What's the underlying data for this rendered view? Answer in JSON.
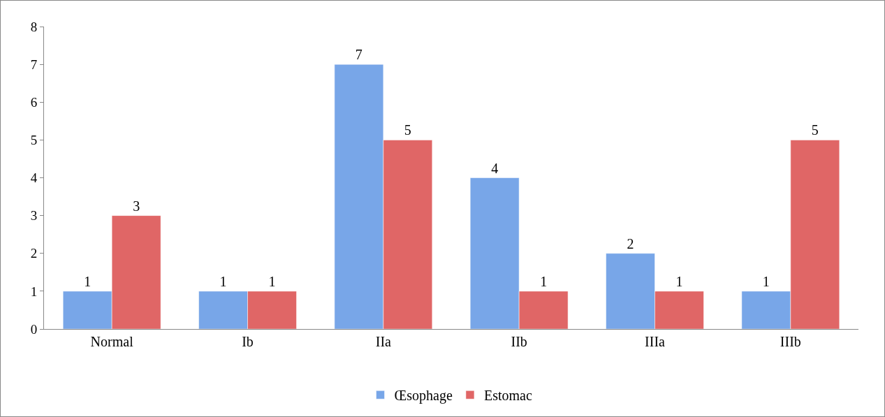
{
  "chart_data": {
    "type": "bar",
    "categories": [
      "Normal",
      "Ib",
      "IIa",
      "IIb",
      "IIIa",
      "IIIb"
    ],
    "series": [
      {
        "name": "Œsophage",
        "color": "#78a6e8",
        "values": [
          1,
          1,
          7,
          4,
          2,
          1
        ]
      },
      {
        "name": "Estomac",
        "color": "#e06666",
        "values": [
          3,
          1,
          5,
          1,
          1,
          5
        ]
      }
    ],
    "ylim": [
      0,
      8
    ],
    "yticks": [
      0,
      1,
      2,
      3,
      4,
      5,
      6,
      7,
      8
    ],
    "grid": false,
    "legend": "bottom",
    "data_labels": true
  }
}
